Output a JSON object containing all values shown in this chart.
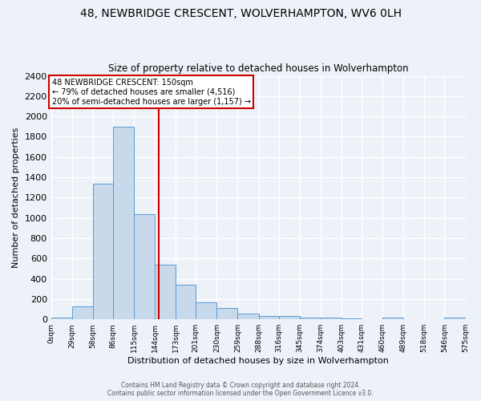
{
  "title": "48, NEWBRIDGE CRESCENT, WOLVERHAMPTON, WV6 0LH",
  "subtitle": "Size of property relative to detached houses in Wolverhampton",
  "xlabel": "Distribution of detached houses by size in Wolverhampton",
  "ylabel": "Number of detached properties",
  "bins": [
    0,
    29,
    58,
    86,
    115,
    144,
    173,
    201,
    230,
    259,
    288,
    316,
    345,
    374,
    403,
    431,
    460,
    489,
    518,
    546,
    575
  ],
  "bin_labels": [
    "0sqm",
    "29sqm",
    "58sqm",
    "86sqm",
    "115sqm",
    "144sqm",
    "173sqm",
    "201sqm",
    "230sqm",
    "259sqm",
    "288sqm",
    "316sqm",
    "345sqm",
    "374sqm",
    "403sqm",
    "431sqm",
    "460sqm",
    "489sqm",
    "518sqm",
    "546sqm",
    "575sqm"
  ],
  "counts": [
    15,
    125,
    1340,
    1900,
    1040,
    540,
    340,
    170,
    110,
    55,
    35,
    30,
    20,
    15,
    10,
    5,
    15,
    5,
    5,
    20
  ],
  "vline_x": 150,
  "annotation_title": "48 NEWBRIDGE CRESCENT: 150sqm",
  "annotation_line1": "← 79% of detached houses are smaller (4,516)",
  "annotation_line2": "20% of semi-detached houses are larger (1,157) →",
  "bar_color": "#c9d9ec",
  "bar_edge_color": "#5b9bd5",
  "vline_color": "#cc0000",
  "annotation_box_color": "#ffffff",
  "annotation_box_edge": "#cc0000",
  "background_color": "#edf2f9",
  "grid_color": "#ffffff",
  "footer1": "Contains HM Land Registry data © Crown copyright and database right 2024.",
  "footer2": "Contains public sector information licensed under the Open Government Licence v3.0.",
  "ylim": [
    0,
    2400
  ],
  "yticks": [
    0,
    200,
    400,
    600,
    800,
    1000,
    1200,
    1400,
    1600,
    1800,
    2000,
    2200,
    2400
  ]
}
